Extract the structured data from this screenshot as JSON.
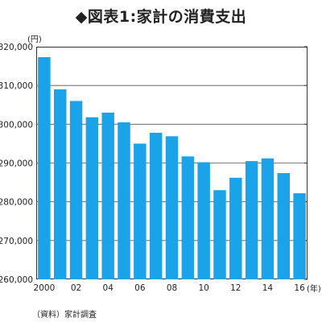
{
  "title": "◆図表1:家計の消費支出",
  "source_note": "（資料）家計調査",
  "chart_data": {
    "type": "bar",
    "title": "◆図表1:家計の消費支出",
    "y_unit_label": "(円)",
    "x_unit_label": "(年)",
    "ylim": [
      260000,
      320000
    ],
    "y_ticks": [
      260000,
      270000,
      280000,
      290000,
      300000,
      310000,
      320000
    ],
    "y_tick_labels": [
      "260,000",
      "270,000",
      "280,000",
      "290,000",
      "300,000",
      "310,000",
      "320,000"
    ],
    "grid": true,
    "categories": [
      "2000",
      "2001",
      "2002",
      "2003",
      "2004",
      "2005",
      "2006",
      "2007",
      "2008",
      "2009",
      "2010",
      "2011",
      "2012",
      "2013",
      "2014",
      "2015",
      "2016"
    ],
    "x_tick_labels": [
      "2000",
      "",
      "02",
      "",
      "04",
      "",
      "06",
      "",
      "08",
      "",
      "10",
      "",
      "12",
      "",
      "14",
      "",
      "16"
    ],
    "values": [
      317300,
      309000,
      306000,
      301800,
      303000,
      300500,
      295000,
      297800,
      296900,
      291700,
      290200,
      283000,
      286200,
      290500,
      291200,
      287400,
      282200
    ],
    "bar_color": "#1aa3e8"
  }
}
